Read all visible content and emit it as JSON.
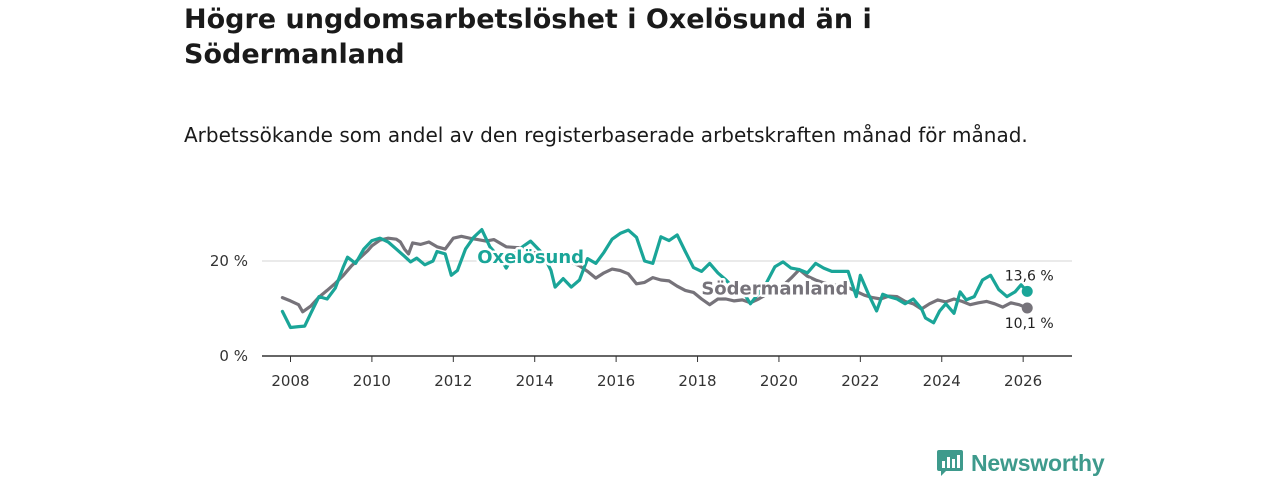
{
  "header": {
    "title": "Högre ungdomsarbetslöshet i Oxelösund än i Södermanland",
    "subtitle": "Arbetssökande som andel av den registerbaserade arbetskraften månad för månad."
  },
  "brand": {
    "name": "Newsworthy",
    "icon": "newsworthy-logo-icon",
    "color": "#3e9a8c"
  },
  "chart_data": {
    "type": "line",
    "title": "Högre ungdomsarbetslöshet i Oxelösund än i Södermanland",
    "subtitle": "Arbetssökande som andel av den registerbaserade arbetskraften månad för månad.",
    "xlabel": "",
    "ylabel": "",
    "xlim": [
      2007.3,
      2027.2
    ],
    "ylim": [
      0,
      25
    ],
    "grid": true,
    "x_ticks": [
      2008,
      2010,
      2012,
      2014,
      2016,
      2018,
      2020,
      2022,
      2024,
      2026
    ],
    "x_tick_labels": [
      "2008",
      "2010",
      "2012",
      "2014",
      "2016",
      "2018",
      "2020",
      "2022",
      "2024",
      "2026"
    ],
    "y_ticks": [
      0,
      20
    ],
    "y_tick_labels": [
      "0 %",
      "20 %"
    ],
    "series": [
      {
        "name": "Södermanland",
        "color": "#76737a",
        "end_label": "10,1 %",
        "points": [
          [
            2007.8,
            12.3
          ],
          [
            2008.0,
            11.6
          ],
          [
            2008.2,
            10.8
          ],
          [
            2008.3,
            9.3
          ],
          [
            2008.5,
            10.5
          ],
          [
            2008.7,
            12.4
          ],
          [
            2008.9,
            13.8
          ],
          [
            2009.1,
            15.3
          ],
          [
            2009.3,
            17.0
          ],
          [
            2009.5,
            19.0
          ],
          [
            2009.7,
            20.6
          ],
          [
            2009.9,
            22.2
          ],
          [
            2010.0,
            23.2
          ],
          [
            2010.2,
            24.4
          ],
          [
            2010.4,
            24.8
          ],
          [
            2010.6,
            24.6
          ],
          [
            2010.7,
            24.0
          ],
          [
            2010.8,
            22.5
          ],
          [
            2010.9,
            21.5
          ],
          [
            2011.0,
            23.8
          ],
          [
            2011.2,
            23.5
          ],
          [
            2011.4,
            24.0
          ],
          [
            2011.6,
            23.0
          ],
          [
            2011.8,
            22.5
          ],
          [
            2012.0,
            24.8
          ],
          [
            2012.2,
            25.2
          ],
          [
            2012.4,
            24.8
          ],
          [
            2012.6,
            24.5
          ],
          [
            2012.8,
            24.2
          ],
          [
            2013.0,
            24.5
          ],
          [
            2013.3,
            23.0
          ],
          [
            2013.6,
            22.8
          ],
          [
            2013.9,
            21.8
          ],
          [
            2014.2,
            21.5
          ],
          [
            2014.5,
            20.7
          ],
          [
            2014.8,
            20.0
          ],
          [
            2015.1,
            19.0
          ],
          [
            2015.3,
            17.8
          ],
          [
            2015.5,
            16.4
          ],
          [
            2015.7,
            17.5
          ],
          [
            2015.9,
            18.3
          ],
          [
            2016.1,
            18.0
          ],
          [
            2016.3,
            17.3
          ],
          [
            2016.5,
            15.2
          ],
          [
            2016.7,
            15.5
          ],
          [
            2016.9,
            16.5
          ],
          [
            2017.1,
            16.0
          ],
          [
            2017.3,
            15.8
          ],
          [
            2017.5,
            14.7
          ],
          [
            2017.7,
            13.8
          ],
          [
            2017.9,
            13.4
          ],
          [
            2018.1,
            12.0
          ],
          [
            2018.3,
            10.8
          ],
          [
            2018.5,
            12.0
          ],
          [
            2018.7,
            12.0
          ],
          [
            2018.9,
            11.6
          ],
          [
            2019.1,
            11.8
          ],
          [
            2019.3,
            11.2
          ],
          [
            2019.5,
            12.0
          ],
          [
            2019.7,
            13.0
          ],
          [
            2019.9,
            14.2
          ],
          [
            2020.1,
            14.8
          ],
          [
            2020.3,
            16.4
          ],
          [
            2020.5,
            18.2
          ],
          [
            2020.7,
            16.8
          ],
          [
            2020.9,
            16.0
          ],
          [
            2021.1,
            15.4
          ],
          [
            2021.3,
            15.0
          ],
          [
            2021.5,
            14.8
          ],
          [
            2021.7,
            14.4
          ],
          [
            2021.9,
            13.6
          ],
          [
            2022.1,
            12.8
          ],
          [
            2022.3,
            12.3
          ],
          [
            2022.5,
            12.0
          ],
          [
            2022.7,
            12.6
          ],
          [
            2022.9,
            12.5
          ],
          [
            2023.1,
            11.5
          ],
          [
            2023.3,
            11.0
          ],
          [
            2023.5,
            9.9
          ],
          [
            2023.7,
            11.0
          ],
          [
            2023.9,
            11.8
          ],
          [
            2024.1,
            11.4
          ],
          [
            2024.3,
            12.0
          ],
          [
            2024.5,
            11.5
          ],
          [
            2024.7,
            10.8
          ],
          [
            2024.9,
            11.2
          ],
          [
            2025.1,
            11.5
          ],
          [
            2025.3,
            11.0
          ],
          [
            2025.5,
            10.3
          ],
          [
            2025.7,
            11.2
          ],
          [
            2025.9,
            10.8
          ],
          [
            2026.1,
            10.1
          ]
        ]
      },
      {
        "name": "Oxelösund",
        "color": "#1aa598",
        "end_label": "13,6 %",
        "points": [
          [
            2007.8,
            9.4
          ],
          [
            2008.0,
            6.0
          ],
          [
            2008.2,
            6.2
          ],
          [
            2008.35,
            6.3
          ],
          [
            2008.5,
            9.0
          ],
          [
            2008.7,
            12.5
          ],
          [
            2008.9,
            12.0
          ],
          [
            2009.1,
            14.3
          ],
          [
            2009.3,
            18.8
          ],
          [
            2009.4,
            20.8
          ],
          [
            2009.6,
            19.5
          ],
          [
            2009.8,
            22.5
          ],
          [
            2010.0,
            24.3
          ],
          [
            2010.2,
            24.8
          ],
          [
            2010.4,
            24.0
          ],
          [
            2010.6,
            22.5
          ],
          [
            2010.8,
            21.0
          ],
          [
            2010.95,
            19.8
          ],
          [
            2011.1,
            20.6
          ],
          [
            2011.3,
            19.2
          ],
          [
            2011.5,
            20.0
          ],
          [
            2011.6,
            22.0
          ],
          [
            2011.8,
            21.5
          ],
          [
            2011.95,
            17.0
          ],
          [
            2012.1,
            18.0
          ],
          [
            2012.3,
            22.5
          ],
          [
            2012.5,
            25.0
          ],
          [
            2012.7,
            26.6
          ],
          [
            2012.9,
            23.0
          ],
          [
            2013.1,
            21.0
          ],
          [
            2013.2,
            20.0
          ],
          [
            2013.3,
            18.5
          ],
          [
            2013.5,
            21.5
          ],
          [
            2013.7,
            23.0
          ],
          [
            2013.9,
            24.2
          ],
          [
            2014.2,
            21.5
          ],
          [
            2014.4,
            18.0
          ],
          [
            2014.5,
            14.5
          ],
          [
            2014.7,
            16.3
          ],
          [
            2014.9,
            14.5
          ],
          [
            2015.1,
            16.0
          ],
          [
            2015.3,
            20.5
          ],
          [
            2015.5,
            19.5
          ],
          [
            2015.7,
            21.8
          ],
          [
            2015.9,
            24.6
          ],
          [
            2016.1,
            25.8
          ],
          [
            2016.3,
            26.5
          ],
          [
            2016.5,
            25.0
          ],
          [
            2016.7,
            20.0
          ],
          [
            2016.9,
            19.5
          ],
          [
            2017.1,
            25.1
          ],
          [
            2017.3,
            24.3
          ],
          [
            2017.5,
            25.5
          ],
          [
            2017.7,
            22.0
          ],
          [
            2017.9,
            18.6
          ],
          [
            2018.1,
            17.8
          ],
          [
            2018.3,
            19.5
          ],
          [
            2018.5,
            17.5
          ],
          [
            2018.7,
            16.0
          ],
          [
            2018.9,
            14.2
          ],
          [
            2019.1,
            13.8
          ],
          [
            2019.3,
            11.0
          ],
          [
            2019.5,
            13.2
          ],
          [
            2019.7,
            15.5
          ],
          [
            2019.9,
            18.8
          ],
          [
            2020.1,
            19.8
          ],
          [
            2020.3,
            18.5
          ],
          [
            2020.5,
            18.2
          ],
          [
            2020.7,
            17.5
          ],
          [
            2020.9,
            19.5
          ],
          [
            2021.1,
            18.5
          ],
          [
            2021.3,
            17.8
          ],
          [
            2021.5,
            17.8
          ],
          [
            2021.7,
            17.8
          ],
          [
            2021.9,
            12.5
          ],
          [
            2022.0,
            17.0
          ],
          [
            2022.2,
            13.0
          ],
          [
            2022.4,
            9.5
          ],
          [
            2022.55,
            13.0
          ],
          [
            2022.7,
            12.5
          ],
          [
            2022.9,
            12.0
          ],
          [
            2023.1,
            11.0
          ],
          [
            2023.3,
            12.0
          ],
          [
            2023.5,
            10.0
          ],
          [
            2023.6,
            8.0
          ],
          [
            2023.8,
            7.0
          ],
          [
            2023.95,
            9.5
          ],
          [
            2024.1,
            11.0
          ],
          [
            2024.3,
            9.0
          ],
          [
            2024.45,
            13.5
          ],
          [
            2024.6,
            11.8
          ],
          [
            2024.8,
            12.5
          ],
          [
            2025.0,
            16.0
          ],
          [
            2025.2,
            17.0
          ],
          [
            2025.4,
            14.0
          ],
          [
            2025.6,
            12.5
          ],
          [
            2025.8,
            13.5
          ],
          [
            2025.95,
            15.0
          ],
          [
            2026.1,
            13.6
          ]
        ]
      }
    ],
    "series_labels": [
      {
        "series": "Oxelösund",
        "text": "Oxelösund",
        "x": 2013.9,
        "y": 20.8
      },
      {
        "series": "Södermanland",
        "text": "Södermanland",
        "x": 2019.9,
        "y": 14.2
      }
    ]
  }
}
